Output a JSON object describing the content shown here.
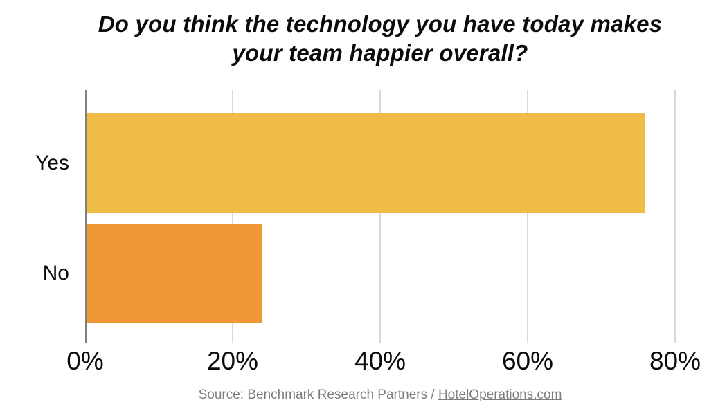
{
  "title_lines": [
    "Do you think the technology you have today makes",
    "your team happier overall?"
  ],
  "chart_data": {
    "type": "bar",
    "orientation": "horizontal",
    "title": "Do you think the technology you have today makes your team happier overall?",
    "categories": [
      "Yes",
      "No"
    ],
    "values": [
      76,
      24
    ],
    "unit": "%",
    "xlabel": "",
    "ylabel": "",
    "xlim": [
      0,
      80
    ],
    "xticks": [
      {
        "value": 0,
        "label": "0%"
      },
      {
        "value": 20,
        "label": "20%"
      },
      {
        "value": 40,
        "label": "40%"
      },
      {
        "value": 60,
        "label": "60%"
      },
      {
        "value": 80,
        "label": "80%"
      }
    ],
    "grid": "vertical-gridlines-on",
    "legend": "none",
    "bar_colors": [
      "#EFBC45",
      "#EE9838"
    ]
  },
  "colors": {
    "background": "#FFFFFF",
    "gridline": "#D9D9D9",
    "axis_line": "#808080",
    "text": "#0B0B0B",
    "source_text": "#7D7D7D"
  },
  "source": {
    "prefix": "Source: Benchmark Research Partners / ",
    "link_label": "HotelOperations.com"
  }
}
